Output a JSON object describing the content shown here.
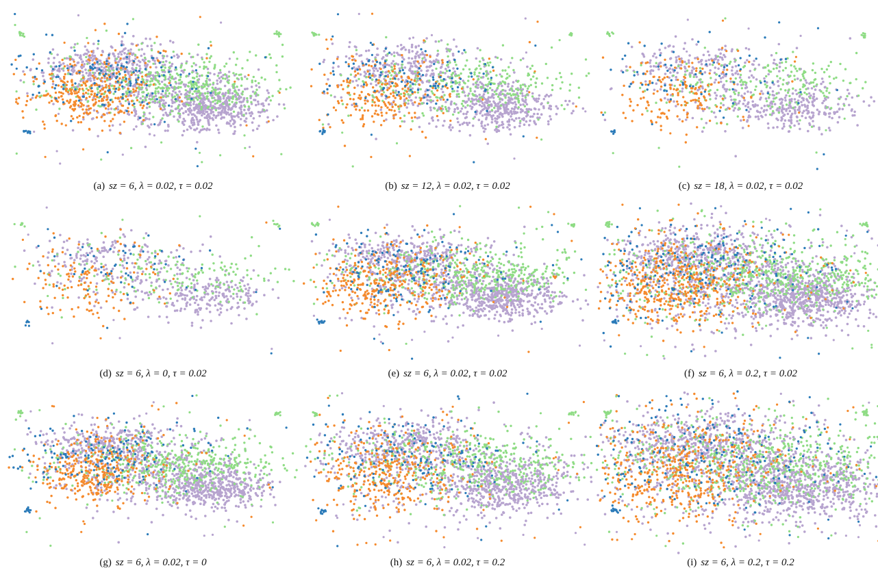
{
  "chart_data": [
    {
      "type": "scatter",
      "panel_label": "(a)",
      "caption_math": "sz = 6, λ = 0.02, τ = 0.02",
      "sz": 6,
      "lambda": 0.02,
      "tau": 0.02,
      "density": "medium",
      "series": [
        {
          "color": "#b7a4cf"
        },
        {
          "color": "#8fdc85"
        },
        {
          "color": "#f58a2c"
        },
        {
          "color": "#2b7bb9"
        }
      ]
    },
    {
      "type": "scatter",
      "panel_label": "(b)",
      "caption_math": "sz = 12, λ = 0.02, τ = 0.02",
      "sz": 12,
      "lambda": 0.02,
      "tau": 0.02,
      "density": "medium-low",
      "series": [
        {
          "color": "#b7a4cf"
        },
        {
          "color": "#8fdc85"
        },
        {
          "color": "#f58a2c"
        },
        {
          "color": "#2b7bb9"
        }
      ]
    },
    {
      "type": "scatter",
      "panel_label": "(c)",
      "caption_math": "sz = 18, λ = 0.02, τ = 0.02",
      "sz": 18,
      "lambda": 0.02,
      "tau": 0.02,
      "density": "low",
      "series": [
        {
          "color": "#b7a4cf"
        },
        {
          "color": "#8fdc85"
        },
        {
          "color": "#f58a2c"
        },
        {
          "color": "#2b7bb9"
        }
      ]
    },
    {
      "type": "scatter",
      "panel_label": "(d)",
      "caption_math": "sz = 6, λ = 0, τ = 0.02",
      "sz": 6,
      "lambda": 0,
      "tau": 0.02,
      "density": "very-low",
      "series": [
        {
          "color": "#b7a4cf"
        },
        {
          "color": "#8fdc85"
        },
        {
          "color": "#f58a2c"
        },
        {
          "color": "#2b7bb9"
        }
      ]
    },
    {
      "type": "scatter",
      "panel_label": "(e)",
      "caption_math": "sz = 6, λ = 0.02, τ = 0.02",
      "sz": 6,
      "lambda": 0.02,
      "tau": 0.02,
      "density": "medium",
      "series": [
        {
          "color": "#b7a4cf"
        },
        {
          "color": "#8fdc85"
        },
        {
          "color": "#f58a2c"
        },
        {
          "color": "#2b7bb9"
        }
      ]
    },
    {
      "type": "scatter",
      "panel_label": "(f)",
      "caption_math": "sz = 6, λ = 0.2, τ = 0.02",
      "sz": 6,
      "lambda": 0.2,
      "tau": 0.02,
      "density": "high",
      "series": [
        {
          "color": "#b7a4cf"
        },
        {
          "color": "#8fdc85"
        },
        {
          "color": "#f58a2c"
        },
        {
          "color": "#2b7bb9"
        }
      ]
    },
    {
      "type": "scatter",
      "panel_label": "(g)",
      "caption_math": "sz = 6, λ = 0.02, τ = 0",
      "sz": 6,
      "lambda": 0.02,
      "tau": 0,
      "density": "medium",
      "series": [
        {
          "color": "#b7a4cf"
        },
        {
          "color": "#8fdc85"
        },
        {
          "color": "#f58a2c"
        },
        {
          "color": "#2b7bb9"
        }
      ]
    },
    {
      "type": "scatter",
      "panel_label": "(h)",
      "caption_math": "sz = 6, λ = 0.02, τ = 0.2",
      "sz": 6,
      "lambda": 0.02,
      "tau": 0.2,
      "density": "medium",
      "series": [
        {
          "color": "#b7a4cf"
        },
        {
          "color": "#8fdc85"
        },
        {
          "color": "#f58a2c"
        },
        {
          "color": "#2b7bb9"
        }
      ]
    },
    {
      "type": "scatter",
      "panel_label": "(i)",
      "caption_math": "sz = 6, λ = 0.2, τ = 0.2",
      "sz": 6,
      "lambda": 0.2,
      "tau": 0.2,
      "density": "high",
      "series": [
        {
          "color": "#b7a4cf"
        },
        {
          "color": "#8fdc85"
        },
        {
          "color": "#f58a2c"
        },
        {
          "color": "#2b7bb9"
        }
      ]
    }
  ]
}
